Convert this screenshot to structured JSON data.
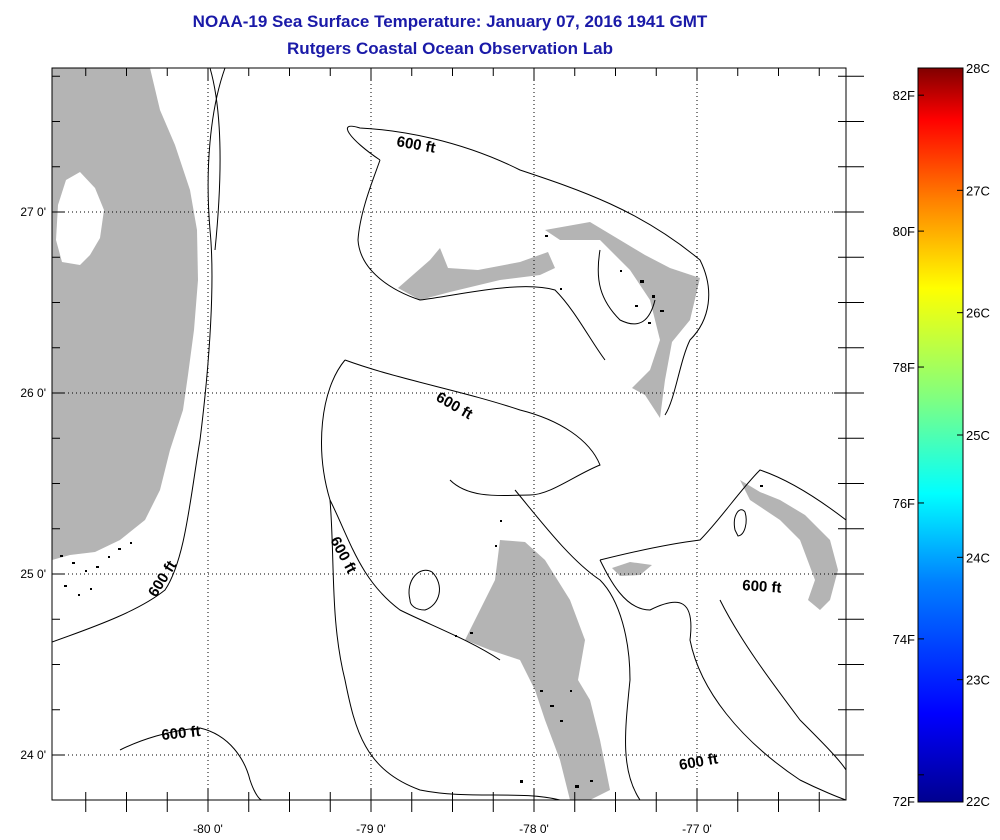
{
  "header": {
    "title": "NOAA-19 Sea Surface Temperature:  January 07, 2016 1941 GMT",
    "subtitle": "Rutgers Coastal Ocean Observation Lab"
  },
  "map": {
    "lat_ticks": [
      {
        "label": "27 0'",
        "lat": 27.0
      },
      {
        "label": "26 0'",
        "lat": 26.0
      },
      {
        "label": "25 0'",
        "lat": 25.0
      },
      {
        "label": "24 0'",
        "lat": 24.0
      }
    ],
    "lon_ticks": [
      {
        "label": "-80 0'",
        "lon": -80.0
      },
      {
        "label": "-79 0'",
        "lon": -79.0
      },
      {
        "label": "-78 0'",
        "lon": -78.0
      },
      {
        "label": "-77 0'",
        "lon": -77.0
      }
    ],
    "contour_labels": [
      "600 ft",
      "600 ft",
      "600 ft",
      "600 ft",
      "600 ft",
      "600 ft"
    ],
    "colors": {
      "land": "#b4b4b4",
      "ocean": "#ffffff",
      "cloud": "#ffffff",
      "isobath": "#000000",
      "grid": "#000000"
    }
  },
  "colorbar": {
    "min_c": 22,
    "max_c": 28,
    "celsius_labels": [
      "28C",
      "27C",
      "26C",
      "25C",
      "24C",
      "23C",
      "22C"
    ],
    "fahrenheit_labels": [
      "82F",
      "80F",
      "78F",
      "76F",
      "74F",
      "72F"
    ],
    "colors": [
      "#00008f",
      "#0000ff",
      "#0080ff",
      "#00ffff",
      "#80ff80",
      "#ffff00",
      "#ff8000",
      "#ff0000",
      "#800000"
    ]
  }
}
